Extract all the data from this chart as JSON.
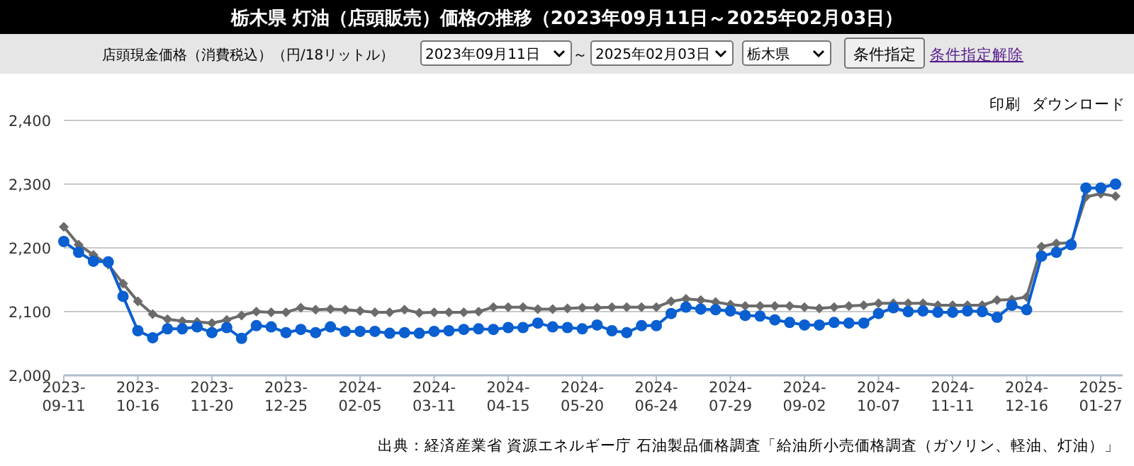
{
  "chart_data": {
    "type": "line",
    "title": "栃木県 灯油（店頭販売）価格の推移（2023年09月11日～2025年02月03日）",
    "subtitle": "店頭現金価格（消費税込）（円/18リットル）",
    "annotations": [
      "2023年09月11日",
      "～",
      "2025年02月03日",
      "栃木県",
      "条件指定",
      "条件指定解除",
      "印刷",
      "ダウンロード",
      "出典：経済産業省 資源エネルギー庁 石油製品価格調査「給油所小売価格調査（ガソリン、軽油、灯油）」"
    ],
    "categories": [
      "2023-09-11",
      null,
      null,
      null,
      null,
      "2023-10-16",
      null,
      null,
      null,
      null,
      "2023-11-20",
      null,
      null,
      null,
      null,
      "2023-12-25",
      null,
      null,
      null,
      null,
      "2024-02-05",
      null,
      null,
      null,
      null,
      "2024-03-11",
      null,
      null,
      null,
      null,
      "2024-04-15",
      null,
      null,
      null,
      null,
      "2024-05-20",
      null,
      null,
      null,
      null,
      "2024-06-24",
      null,
      null,
      null,
      null,
      "2024-07-29",
      null,
      null,
      null,
      null,
      "2024-09-02",
      null,
      null,
      null,
      null,
      "2024-10-07",
      null,
      null,
      null,
      null,
      "2024-11-11",
      null,
      null,
      null,
      null,
      "2024-12-16",
      null,
      null,
      null,
      null,
      "2025-01-27",
      null
    ],
    "series": [
      {
        "color": "#6b6b6b",
        "marker": "diamond",
        "values": [
          2233,
          2205,
          2189,
          2174,
          2144,
          2116,
          2096,
          2088,
          2085,
          2084,
          2082,
          2087,
          2094,
          2100,
          2099,
          2099,
          2106,
          2103,
          2104,
          2103,
          2101,
          2099,
          2099,
          2103,
          2098,
          2099,
          2099,
          2099,
          2100,
          2107,
          2107,
          2107,
          2104,
          2104,
          2105,
          2106,
          2106,
          2107,
          2107,
          2107,
          2107,
          2116,
          2120,
          2118,
          2115,
          2111,
          2109,
          2109,
          2109,
          2109,
          2107,
          2105,
          2107,
          2109,
          2110,
          2113,
          2113,
          2113,
          2113,
          2110,
          2110,
          2110,
          2110,
          2118,
          2119,
          2123,
          2202,
          2207,
          2208,
          2280,
          2285,
          2281
        ]
      },
      {
        "color": "#0a5fd1",
        "marker": "circle",
        "values": [
          2210,
          2193,
          2179,
          2178,
          2124,
          2070,
          2059,
          2073,
          2073,
          2076,
          2067,
          2075,
          2058,
          2078,
          2076,
          2067,
          2072,
          2067,
          2076,
          2069,
          2069,
          2069,
          2066,
          2067,
          2066,
          2069,
          2070,
          2072,
          2073,
          2072,
          2075,
          2075,
          2082,
          2076,
          2075,
          2073,
          2079,
          2070,
          2067,
          2078,
          2078,
          2097,
          2107,
          2104,
          2103,
          2101,
          2094,
          2093,
          2087,
          2083,
          2079,
          2079,
          2083,
          2082,
          2082,
          2097,
          2106,
          2100,
          2101,
          2099,
          2099,
          2101,
          2100,
          2091,
          2110,
          2103,
          2187,
          2193,
          2205,
          2294,
          2294,
          2300
        ]
      }
    ],
    "ylim": [
      2000,
      2400
    ],
    "yticks": [
      {
        "value": 2000,
        "label": "2,000"
      },
      {
        "value": 2100,
        "label": "2,100"
      },
      {
        "value": 2200,
        "label": "2,200"
      },
      {
        "value": 2300,
        "label": "2,300"
      },
      {
        "value": 2400,
        "label": "2,400"
      }
    ],
    "grid": "y"
  }
}
